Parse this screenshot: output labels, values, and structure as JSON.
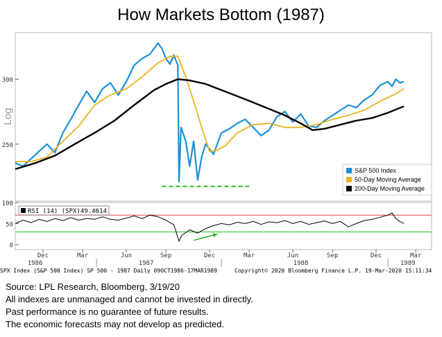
{
  "title": "How Markets Bottom (1987)",
  "chart_data": {
    "type": "line",
    "main_panel": {
      "y_scale": "log",
      "y_axis_label": "Log",
      "y_ticks": [
        250,
        300
      ],
      "ylim": [
        213,
        342
      ],
      "legend": [
        {
          "name": "S&P 500 Index",
          "color": "#1a8fd8"
        },
        {
          "name": "50-Day Moving Average",
          "color": "#e8b21e"
        },
        {
          "name": "200-Day Moving Average",
          "color": "#000000"
        }
      ],
      "legend_position": "bottom-right",
      "support_line_value": 222,
      "support_line_color": "#22bb22",
      "series": [
        {
          "name": "S&P 500 Index",
          "color": "#1a8fd8",
          "points": [
            [
              0,
              237
            ],
            [
              2,
              235
            ],
            [
              4,
              240
            ],
            [
              6,
              245
            ],
            [
              8,
              250
            ],
            [
              10,
              244
            ],
            [
              12,
              258
            ],
            [
              14,
              268
            ],
            [
              16,
              279
            ],
            [
              18,
              290
            ],
            [
              20,
              281
            ],
            [
              22,
              292
            ],
            [
              24,
              297
            ],
            [
              26,
              287
            ],
            [
              28,
              298
            ],
            [
              30,
              312
            ],
            [
              32,
              318
            ],
            [
              34,
              322
            ],
            [
              36,
              332
            ],
            [
              37,
              327
            ],
            [
              38,
              318
            ],
            [
              39,
              313
            ],
            [
              40,
              321
            ],
            [
              41,
              312
            ],
            [
              41.3,
              225
            ],
            [
              41.8,
              262
            ],
            [
              43,
              252
            ],
            [
              44,
              235
            ],
            [
              45,
              252
            ],
            [
              46,
              226
            ],
            [
              47,
              241
            ],
            [
              48,
              250
            ],
            [
              50,
              243
            ],
            [
              52,
              258
            ],
            [
              54,
              261
            ],
            [
              56,
              265
            ],
            [
              58,
              268
            ],
            [
              60,
              262
            ],
            [
              62,
              256
            ],
            [
              64,
              260
            ],
            [
              66,
              270
            ],
            [
              68,
              274
            ],
            [
              70,
              266
            ],
            [
              72,
              272
            ],
            [
              74,
              263
            ],
            [
              76,
              262
            ],
            [
              78,
              267
            ],
            [
              80,
              271
            ],
            [
              82,
              275
            ],
            [
              84,
              279
            ],
            [
              86,
              277
            ],
            [
              88,
              283
            ],
            [
              90,
              287
            ],
            [
              92,
              295
            ],
            [
              94,
              298
            ],
            [
              95,
              294
            ],
            [
              96,
              300
            ],
            [
              97,
              297
            ],
            [
              98,
              298
            ]
          ]
        },
        {
          "name": "50-Day Moving Average",
          "color": "#e8b21e",
          "points": [
            [
              0,
              238
            ],
            [
              4,
              238
            ],
            [
              8,
              241
            ],
            [
              12,
              252
            ],
            [
              16,
              263
            ],
            [
              20,
              279
            ],
            [
              24,
              287
            ],
            [
              28,
              292
            ],
            [
              32,
              302
            ],
            [
              36,
              314
            ],
            [
              39,
              320
            ],
            [
              41,
              320
            ],
            [
              43,
              302
            ],
            [
              45,
              282
            ],
            [
              47,
              262
            ],
            [
              49,
              245
            ],
            [
              51,
              246
            ],
            [
              53,
              249
            ],
            [
              56,
              258
            ],
            [
              60,
              264
            ],
            [
              64,
              265
            ],
            [
              68,
              262
            ],
            [
              72,
              262
            ],
            [
              76,
              264
            ],
            [
              80,
              268
            ],
            [
              84,
              271
            ],
            [
              88,
              275
            ],
            [
              92,
              282
            ],
            [
              96,
              288
            ],
            [
              98,
              292
            ]
          ]
        },
        {
          "name": "200-Day Moving Average",
          "color": "#000000",
          "points": [
            [
              0,
              233
            ],
            [
              5,
              237
            ],
            [
              10,
              242
            ],
            [
              15,
              250
            ],
            [
              20,
              258
            ],
            [
              25,
              267
            ],
            [
              30,
              279
            ],
            [
              35,
              291
            ],
            [
              38,
              296
            ],
            [
              41,
              300
            ],
            [
              44,
              299
            ],
            [
              48,
              296
            ],
            [
              52,
              291
            ],
            [
              56,
              286
            ],
            [
              60,
              281
            ],
            [
              64,
              276
            ],
            [
              68,
              271
            ],
            [
              72,
              265
            ],
            [
              75,
              260
            ],
            [
              78,
              261
            ],
            [
              82,
              264
            ],
            [
              86,
              267
            ],
            [
              90,
              269
            ],
            [
              94,
              273
            ],
            [
              98,
              278
            ]
          ]
        }
      ]
    },
    "rsi_panel": {
      "label": "RSI (14)  (SPX)",
      "value": "49.4614",
      "y_ticks": [
        0,
        50,
        100
      ],
      "ylim": [
        -12,
        100
      ],
      "upper_line": 70,
      "lower_line": 30,
      "upper_line_color": "#e04040",
      "lower_line_color": "#22bb22",
      "series": [
        [
          0,
          50
        ],
        [
          2,
          58
        ],
        [
          4,
          52
        ],
        [
          6,
          60
        ],
        [
          8,
          55
        ],
        [
          10,
          62
        ],
        [
          12,
          57
        ],
        [
          14,
          64
        ],
        [
          16,
          58
        ],
        [
          18,
          62
        ],
        [
          20,
          60
        ],
        [
          22,
          66
        ],
        [
          24,
          60
        ],
        [
          26,
          58
        ],
        [
          28,
          63
        ],
        [
          30,
          68
        ],
        [
          32,
          62
        ],
        [
          34,
          70
        ],
        [
          36,
          66
        ],
        [
          38,
          58
        ],
        [
          40,
          47
        ],
        [
          41.3,
          8
        ],
        [
          42,
          22
        ],
        [
          44,
          35
        ],
        [
          46,
          27
        ],
        [
          48,
          38
        ],
        [
          50,
          45
        ],
        [
          52,
          50
        ],
        [
          54,
          47
        ],
        [
          56,
          53
        ],
        [
          58,
          50
        ],
        [
          60,
          55
        ],
        [
          62,
          48
        ],
        [
          64,
          54
        ],
        [
          66,
          52
        ],
        [
          68,
          57
        ],
        [
          70,
          50
        ],
        [
          72,
          55
        ],
        [
          74,
          48
        ],
        [
          76,
          52
        ],
        [
          78,
          56
        ],
        [
          80,
          50
        ],
        [
          82,
          55
        ],
        [
          84,
          42
        ],
        [
          86,
          50
        ],
        [
          88,
          57
        ],
        [
          90,
          60
        ],
        [
          92,
          65
        ],
        [
          94,
          70
        ],
        [
          95,
          75
        ],
        [
          96,
          62
        ],
        [
          97,
          55
        ],
        [
          98,
          50
        ]
      ],
      "arrow_color": "#22bb22"
    },
    "x_axis": {
      "month_ticks": [
        {
          "label": "Dec",
          "x": 7
        },
        {
          "label": "Mar",
          "x": 17
        },
        {
          "label": "Jun",
          "x": 28
        },
        {
          "label": "Sep",
          "x": 38
        },
        {
          "label": "Dec",
          "x": 49
        },
        {
          "label": "Mar",
          "x": 59
        },
        {
          "label": "Jun",
          "x": 70
        },
        {
          "label": "Sep",
          "x": 80
        },
        {
          "label": "Dec",
          "x": 91
        },
        {
          "label": "Mar",
          "x": 101
        }
      ],
      "year_labels": [
        {
          "label": "1986",
          "x": 5
        },
        {
          "label": "1987",
          "x": 33
        },
        {
          "label": "1988",
          "x": 72
        },
        {
          "label": "1989",
          "x": 99
        }
      ],
      "xlim": [
        0,
        105
      ]
    },
    "footer_bar": {
      "left": "SPX Index (S&P 500 Index) SP 500 - 1987  Daily 09OCT1986-17MAR1989",
      "middle": "Copyright© 2020 Bloomberg Finance L.P.",
      "right": "19-Mar-2020 15:11:34"
    }
  },
  "notes": [
    "Source: LPL Research, Bloomberg, 3/19/20",
    "All indexes are unmanaged and cannot be invested in directly.",
    "Past performance is no guarantee of future results.",
    "The economic forecasts may not develop as predicted."
  ]
}
